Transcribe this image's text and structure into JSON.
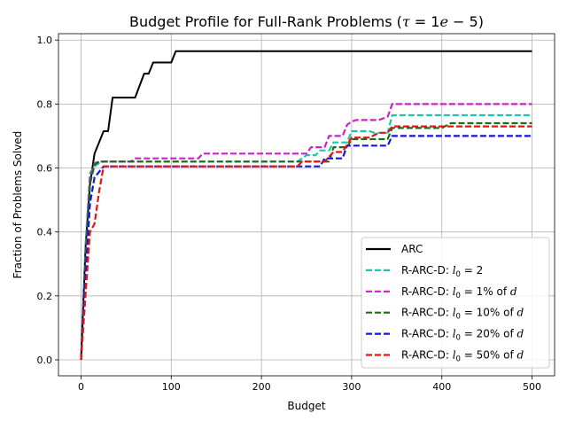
{
  "chart_data": {
    "type": "line",
    "title": "Budget Profile for Full-Rank Problems (τ = 1e − 5)",
    "title_parts": {
      "prefix": "Budget Profile for Full-Rank Problems (",
      "tau": "τ",
      "equals": " = 1",
      "e": "e",
      "suffix": " − 5)"
    },
    "xlabel": "Budget",
    "ylabel": "Fraction of Problems Solved",
    "xlim": [
      -25,
      525
    ],
    "ylim": [
      -0.05,
      1.02
    ],
    "xticks": [
      0,
      100,
      200,
      300,
      400,
      500
    ],
    "yticks": [
      0.0,
      0.2,
      0.4,
      0.6,
      0.8,
      1.0
    ],
    "xtick_labels": [
      "0",
      "100",
      "200",
      "300",
      "400",
      "500"
    ],
    "ytick_labels": [
      "0.0",
      "0.2",
      "0.4",
      "0.6",
      "0.8",
      "1.0"
    ],
    "grid": true,
    "legend_position": "bottom-right",
    "series": [
      {
        "name": "ARC",
        "legend_label": {
          "text": "ARC",
          "sub": "",
          "tail": ""
        },
        "color": "#000000",
        "dash": "solid",
        "points": [
          [
            0,
            0.0
          ],
          [
            5,
            0.35
          ],
          [
            10,
            0.55
          ],
          [
            15,
            0.645
          ],
          [
            20,
            0.68
          ],
          [
            25,
            0.715
          ],
          [
            30,
            0.715
          ],
          [
            35,
            0.82
          ],
          [
            40,
            0.82
          ],
          [
            60,
            0.82
          ],
          [
            70,
            0.895
          ],
          [
            75,
            0.895
          ],
          [
            80,
            0.93
          ],
          [
            100,
            0.93
          ],
          [
            105,
            0.965
          ],
          [
            500,
            0.965
          ]
        ]
      },
      {
        "name": "R-ARC-D: l0 = 2",
        "legend_label": {
          "text": "R-ARC-D: l",
          "sub": "0",
          "tail": " = 2"
        },
        "color": "#17c9a9",
        "dash": "dashed",
        "points": [
          [
            0,
            0.0
          ],
          [
            5,
            0.36
          ],
          [
            10,
            0.585
          ],
          [
            15,
            0.605
          ],
          [
            20,
            0.615
          ],
          [
            25,
            0.62
          ],
          [
            240,
            0.62
          ],
          [
            250,
            0.64
          ],
          [
            260,
            0.64
          ],
          [
            265,
            0.655
          ],
          [
            275,
            0.655
          ],
          [
            280,
            0.68
          ],
          [
            295,
            0.68
          ],
          [
            300,
            0.715
          ],
          [
            320,
            0.715
          ],
          [
            325,
            0.71
          ],
          [
            340,
            0.71
          ],
          [
            345,
            0.765
          ],
          [
            500,
            0.765
          ]
        ]
      },
      {
        "name": "R-ARC-D: l0 = 1% of d",
        "legend_label": {
          "text": "R-ARC-D: l",
          "sub": "0",
          "tail": " = 1% of d"
        },
        "color": "#cc20c8",
        "dash": "dashed",
        "points": [
          [
            0,
            0.0
          ],
          [
            5,
            0.33
          ],
          [
            10,
            0.57
          ],
          [
            15,
            0.615
          ],
          [
            20,
            0.62
          ],
          [
            55,
            0.62
          ],
          [
            60,
            0.63
          ],
          [
            130,
            0.63
          ],
          [
            135,
            0.645
          ],
          [
            250,
            0.645
          ],
          [
            255,
            0.665
          ],
          [
            270,
            0.665
          ],
          [
            275,
            0.7
          ],
          [
            290,
            0.7
          ],
          [
            295,
            0.735
          ],
          [
            300,
            0.745
          ],
          [
            305,
            0.75
          ],
          [
            330,
            0.75
          ],
          [
            340,
            0.76
          ],
          [
            345,
            0.8
          ],
          [
            500,
            0.8
          ]
        ]
      },
      {
        "name": "R-ARC-D: l0 = 10% of d",
        "legend_label": {
          "text": "R-ARC-D: l",
          "sub": "0",
          "tail": " = 10% of d"
        },
        "color": "#1d6b12",
        "dash": "dashed",
        "points": [
          [
            0,
            0.0
          ],
          [
            5,
            0.31
          ],
          [
            10,
            0.55
          ],
          [
            15,
            0.61
          ],
          [
            20,
            0.62
          ],
          [
            275,
            0.62
          ],
          [
            280,
            0.665
          ],
          [
            295,
            0.665
          ],
          [
            300,
            0.69
          ],
          [
            340,
            0.69
          ],
          [
            345,
            0.725
          ],
          [
            400,
            0.725
          ],
          [
            410,
            0.74
          ],
          [
            500,
            0.74
          ]
        ]
      },
      {
        "name": "R-ARC-D: l0 = 20% of d",
        "legend_label": {
          "text": "R-ARC-D: l",
          "sub": "0",
          "tail": " = 20% of d"
        },
        "color": "#1313e6",
        "dash": "dashed",
        "points": [
          [
            0,
            0.0
          ],
          [
            5,
            0.26
          ],
          [
            10,
            0.49
          ],
          [
            15,
            0.57
          ],
          [
            25,
            0.605
          ],
          [
            265,
            0.605
          ],
          [
            270,
            0.63
          ],
          [
            290,
            0.63
          ],
          [
            295,
            0.67
          ],
          [
            340,
            0.67
          ],
          [
            345,
            0.7
          ],
          [
            500,
            0.7
          ]
        ]
      },
      {
        "name": "R-ARC-D: l0 = 50% of d",
        "legend_label": {
          "text": "R-ARC-D: l",
          "sub": "0",
          "tail": " = 50% of d"
        },
        "color": "#ee1111",
        "dash": "dashed",
        "points": [
          [
            0,
            0.0
          ],
          [
            5,
            0.2
          ],
          [
            10,
            0.4
          ],
          [
            15,
            0.425
          ],
          [
            20,
            0.525
          ],
          [
            25,
            0.605
          ],
          [
            240,
            0.605
          ],
          [
            245,
            0.62
          ],
          [
            270,
            0.62
          ],
          [
            280,
            0.65
          ],
          [
            290,
            0.65
          ],
          [
            300,
            0.695
          ],
          [
            320,
            0.695
          ],
          [
            330,
            0.71
          ],
          [
            340,
            0.71
          ],
          [
            345,
            0.73
          ],
          [
            500,
            0.73
          ]
        ]
      }
    ]
  }
}
